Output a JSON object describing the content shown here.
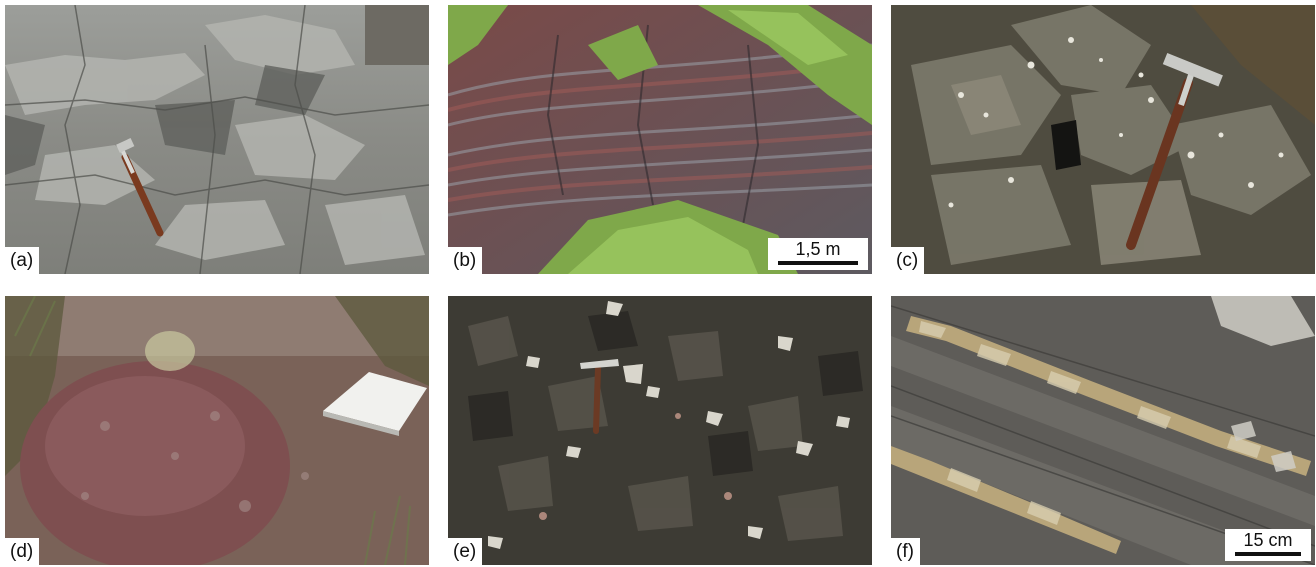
{
  "panels": [
    {
      "label": "(a)"
    },
    {
      "label": "(b)",
      "scale": "1,5 m"
    },
    {
      "label": "(c)"
    },
    {
      "label": "(d)"
    },
    {
      "label": "(e)"
    },
    {
      "label": "(f)",
      "scale": "15 cm"
    }
  ]
}
